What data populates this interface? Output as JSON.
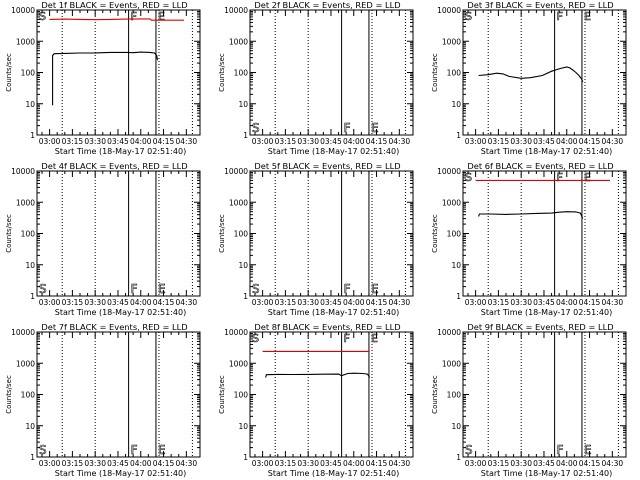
{
  "common": {
    "xlabel": "Start Time (18-May-17 02:51:40)",
    "ylabel": "Counts/sec",
    "x_ticks": [
      "03:00",
      "03:15",
      "03:30",
      "03:45",
      "04:00",
      "04:15",
      "04:30"
    ],
    "x_range_min": [
      -8.3,
      99.0
    ],
    "dotted_lines_min": [
      8.3,
      30.0,
      72.0,
      94.0
    ],
    "event_lines_min": [
      52.0,
      70.0
    ],
    "marker_labels": [
      "S",
      "F",
      "E"
    ],
    "colors": {
      "events": "#000000",
      "lld": "#dd0000"
    }
  },
  "chart_data": [
    {
      "type": "line",
      "title": "Det 1f BLACK = Events, RED = LLD",
      "yscale": "log",
      "ylim": [
        1,
        10000
      ],
      "y_ticks": [
        "1",
        "10",
        "100",
        "1000",
        "10000"
      ],
      "markers": "top",
      "series": [
        {
          "name": "Events",
          "color": "#000000",
          "x": [
            2.0,
            2.0,
            3.0,
            10,
            20,
            30,
            40,
            50,
            55,
            60,
            66,
            69,
            70.5,
            71.0
          ],
          "y": [
            9,
            350,
            400,
            410,
            420,
            425,
            440,
            440,
            430,
            450,
            440,
            420,
            350,
            250
          ]
        },
        {
          "name": "LLD",
          "color": "#dd0000",
          "x": [
            0,
            10,
            20,
            30,
            40,
            50,
            60,
            66,
            67,
            80,
            88.5
          ],
          "y": [
            5000,
            5100,
            5000,
            4900,
            5000,
            5100,
            5200,
            5200,
            4700,
            4700,
            4700
          ]
        }
      ]
    },
    {
      "type": "line",
      "title": "Det 2f BLACK = Events, RED = LLD",
      "yscale": "log",
      "ylim": [
        1,
        10000
      ],
      "y_ticks": [
        "1",
        "10",
        "100",
        "1000",
        "10000"
      ],
      "markers": "bottom",
      "series": []
    },
    {
      "type": "line",
      "title": "Det 3f BLACK = Events, RED = LLD",
      "yscale": "log",
      "ylim": [
        1,
        10000
      ],
      "y_ticks": [
        "1",
        "10",
        "100",
        "1000",
        "10000"
      ],
      "markers": "top",
      "series": [
        {
          "name": "Events",
          "color": "#000000",
          "x": [
            2,
            8,
            14,
            18,
            22,
            30,
            36,
            44,
            50,
            56,
            60,
            62,
            64,
            66,
            68,
            70,
            70.5
          ],
          "y": [
            80,
            85,
            95,
            90,
            75,
            65,
            68,
            80,
            110,
            135,
            150,
            140,
            120,
            100,
            80,
            60,
            50
          ]
        }
      ]
    },
    {
      "type": "line",
      "title": "Det 4f BLACK = Events, RED = LLD",
      "yscale": "log",
      "ylim": [
        1,
        10000
      ],
      "y_ticks": [
        "1",
        "10",
        "100",
        "1000",
        "10000"
      ],
      "markers": "bottom",
      "series": []
    },
    {
      "type": "line",
      "title": "Det 5f BLACK = Events, RED = LLD",
      "yscale": "log",
      "ylim": [
        1,
        10000
      ],
      "y_ticks": [
        "1",
        "10",
        "100",
        "1000",
        "10000"
      ],
      "markers": "bottom",
      "series": []
    },
    {
      "type": "line",
      "title": "Det 6f BLACK = Events, RED = LLD",
      "yscale": "log",
      "ylim": [
        1,
        10000
      ],
      "y_ticks": [
        "1",
        "10",
        "100",
        "1000",
        "10000"
      ],
      "markers": "top",
      "series": [
        {
          "name": "Events",
          "color": "#000000",
          "x": [
            2,
            2.5,
            10,
            20,
            30,
            40,
            50,
            55,
            60,
            66,
            69,
            70.5
          ],
          "y": [
            350,
            420,
            420,
            410,
            420,
            440,
            450,
            480,
            500,
            490,
            450,
            300
          ]
        },
        {
          "name": "LLD",
          "color": "#dd0000",
          "x": [
            0,
            88.5
          ],
          "y": [
            5000,
            5000
          ]
        }
      ]
    },
    {
      "type": "line",
      "title": "Det 7f BLACK = Events, RED = LLD",
      "yscale": "log",
      "ylim": [
        1,
        10000
      ],
      "y_ticks": [
        "1",
        "10",
        "100",
        "1000",
        "10000"
      ],
      "markers": "bottom",
      "series": []
    },
    {
      "type": "line",
      "title": "Det 8f BLACK = Events, RED = LLD",
      "yscale": "log",
      "ylim": [
        1,
        10000
      ],
      "y_ticks": [
        "1",
        "10",
        "100",
        "1000",
        "10000"
      ],
      "markers": "top",
      "series": [
        {
          "name": "Events",
          "color": "#000000",
          "x": [
            2,
            2.5,
            10,
            20,
            30,
            40,
            50,
            52,
            56,
            60,
            66,
            69,
            70.5
          ],
          "y": [
            350,
            430,
            440,
            435,
            440,
            445,
            450,
            400,
            470,
            480,
            470,
            450,
            350
          ]
        },
        {
          "name": "LLD",
          "color": "#dd0000",
          "x": [
            0,
            70.5
          ],
          "y": [
            2400,
            2400
          ]
        }
      ]
    },
    {
      "type": "line",
      "title": "Det 9f BLACK = Events, RED = LLD",
      "yscale": "log",
      "ylim": [
        1,
        10000
      ],
      "y_ticks": [
        "1",
        "10",
        "100",
        "1000",
        "10000"
      ],
      "markers": "bottom",
      "series": []
    }
  ]
}
